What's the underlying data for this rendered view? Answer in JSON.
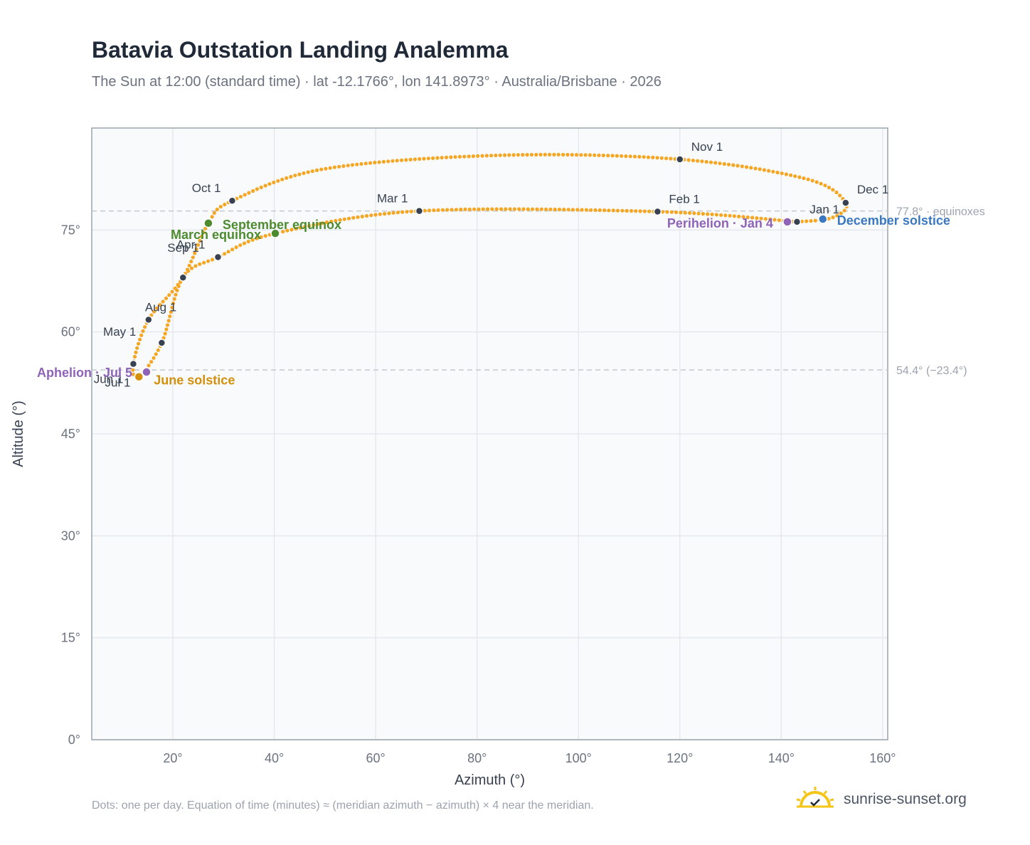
{
  "header": {
    "title": "Batavia Outstation Landing Analemma",
    "subtitle": "The Sun at 12:00 (standard time) · lat -12.1766°, lon 141.8973° · Australia/Brisbane · 2026"
  },
  "footer": {
    "note": "Dots: one per day. Equation of time (minutes) ≈ (meridian azimuth − azimuth) × 4 near the meridian.",
    "brand": "sunrise-sunset.org"
  },
  "colors": {
    "analemma": "#f5a623",
    "month_marker": "#374151",
    "equinox": "#4d8b31",
    "june_solstice": "#d4900a",
    "december_solstice": "#3a78c2",
    "apsis": "#8e63b8",
    "reference_line": "#c4c9d0",
    "plot_bg": "#f8fafc",
    "plot_border": "#9aa3ad",
    "grid": "#e5e9ee"
  },
  "chart_data": {
    "type": "scatter",
    "title": "Batavia Outstation Landing Analemma",
    "xlabel": "Azimuth (°)",
    "ylabel": "Altitude (°)",
    "xlim": [
      4,
      161
    ],
    "ylim": [
      0,
      90
    ],
    "x_ticks": [
      20,
      40,
      60,
      80,
      100,
      120,
      140,
      160
    ],
    "x_tick_labels": [
      "20°",
      "40°",
      "60°",
      "80°",
      "100°",
      "120°",
      "140°",
      "160°"
    ],
    "y_ticks": [
      0,
      15,
      30,
      45,
      60,
      75
    ],
    "y_tick_labels": [
      "0°",
      "15°",
      "30°",
      "45°",
      "60°",
      "75°"
    ],
    "grid": true,
    "reference_lines": [
      {
        "y": 77.8,
        "label": "77.8° · equinoxes"
      },
      {
        "y": 54.4,
        "label": "54.4° (−23.4°)"
      }
    ],
    "month_markers": [
      {
        "label": "Jan 1",
        "x": 143.1,
        "y": 76.2
      },
      {
        "label": "Feb 1",
        "x": 115.6,
        "y": 77.7
      },
      {
        "label": "Mar 1",
        "x": 68.6,
        "y": 77.8
      },
      {
        "label": "Apr 1",
        "x": 28.9,
        "y": 71.0
      },
      {
        "label": "May 1",
        "x": 17.8,
        "y": 58.4
      },
      {
        "label": "Jun 1",
        "x": 13.3,
        "y": 53.4
      },
      {
        "label": "Jul 1",
        "x": 12.2,
        "y": 55.3
      },
      {
        "label": "Aug 1",
        "x": 15.2,
        "y": 61.8
      },
      {
        "label": "Sep 1",
        "x": 22.0,
        "y": 68.0
      },
      {
        "label": "Oct 1",
        "x": 31.7,
        "y": 79.3
      },
      {
        "label": "Nov 1",
        "x": 120.0,
        "y": 85.4
      },
      {
        "label": "Dec 1",
        "x": 152.7,
        "y": 79.0
      }
    ],
    "events": [
      {
        "label": "March equinox",
        "x": 40.2,
        "y": 74.5,
        "color": "#4d8b31"
      },
      {
        "label": "September equinox",
        "x": 27.0,
        "y": 76.0,
        "color": "#4d8b31"
      },
      {
        "label": "June solstice",
        "x": 13.3,
        "y": 53.4,
        "color": "#d4900a"
      },
      {
        "label": "December solstice",
        "x": 148.2,
        "y": 76.6,
        "color": "#3a78c2"
      },
      {
        "label": "Perihelion · Jan 4",
        "x": 141.2,
        "y": 76.2,
        "color": "#8e63b8"
      },
      {
        "label": "Aphelion · Jul 5",
        "x": 14.8,
        "y": 54.1,
        "color": "#8e63b8"
      }
    ],
    "daily_series": {
      "name": "",
      "anchors": [
        {
          "x": 143.1,
          "y": 76.2
        },
        {
          "x": 115.6,
          "y": 77.7
        },
        {
          "x": 68.6,
          "y": 77.8
        },
        {
          "x": 40.2,
          "y": 74.5
        },
        {
          "x": 28.9,
          "y": 71.0
        },
        {
          "x": 22.0,
          "y": 68.0
        },
        {
          "x": 17.8,
          "y": 58.4
        },
        {
          "x": 13.3,
          "y": 53.4
        },
        {
          "x": 12.2,
          "y": 55.3
        },
        {
          "x": 15.2,
          "y": 61.8
        },
        {
          "x": 22.0,
          "y": 68.0
        },
        {
          "x": 27.0,
          "y": 76.0
        },
        {
          "x": 31.7,
          "y": 79.3
        },
        {
          "x": 50.0,
          "y": 84.0
        },
        {
          "x": 85.0,
          "y": 86.0
        },
        {
          "x": 120.0,
          "y": 85.4
        },
        {
          "x": 145.0,
          "y": 82.5
        },
        {
          "x": 152.7,
          "y": 79.0
        },
        {
          "x": 150.0,
          "y": 76.8
        },
        {
          "x": 143.1,
          "y": 76.2
        }
      ]
    }
  }
}
